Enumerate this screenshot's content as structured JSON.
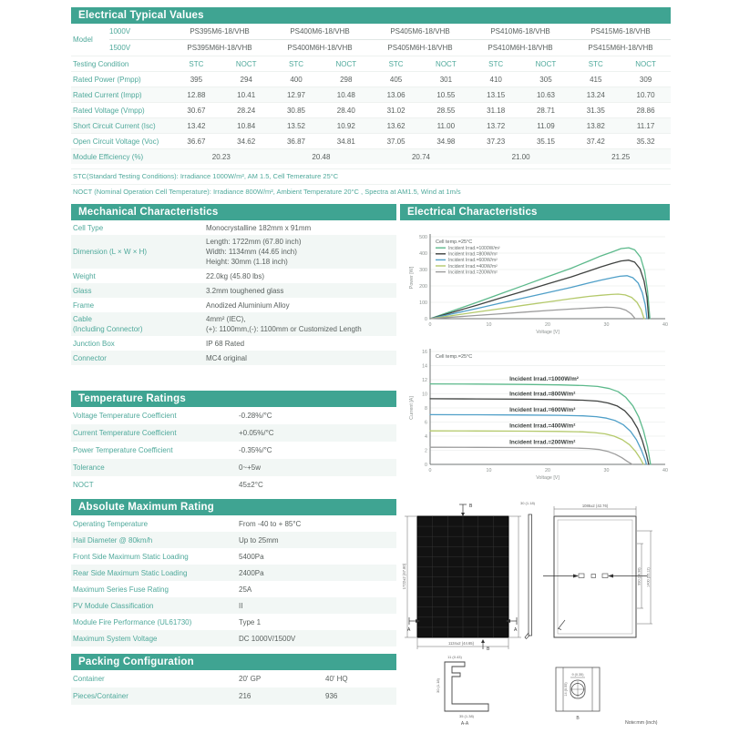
{
  "theme": {
    "accent": "#3fa492",
    "label_color": "#4fa99b",
    "value_color": "#5a615f",
    "stripe": "#f2f7f5"
  },
  "electrical_typical": {
    "title": "Electrical Typical Values",
    "model_label": "Model",
    "voltages": [
      "1000V",
      "1500V"
    ],
    "models_1000": [
      "PS395M6-18/VHB",
      "PS400M6-18/VHB",
      "PS405M6-18/VHB",
      "PS410M6-18/VHB",
      "PS415M6-18/VHB"
    ],
    "models_1500": [
      "PS395M6H-18/VHB",
      "PS400M6H-18/VHB",
      "PS405M6H-18/VHB",
      "PS410M6H-18/VHB",
      "PS415M6H-18/VHB"
    ],
    "testing_condition_label": "Testing Condition",
    "condition_headers": [
      "STC",
      "NOCT"
    ],
    "rows": [
      {
        "label": "Rated Power (Pmpp)",
        "values": [
          "395",
          "294",
          "400",
          "298",
          "405",
          "301",
          "410",
          "305",
          "415",
          "309"
        ]
      },
      {
        "label": "Rated Current (Impp)",
        "values": [
          "12.88",
          "10.41",
          "12.97",
          "10.48",
          "13.06",
          "10.55",
          "13.15",
          "10.63",
          "13.24",
          "10.70"
        ]
      },
      {
        "label": "Rated Voltage (Vmpp)",
        "values": [
          "30.67",
          "28.24",
          "30.85",
          "28.40",
          "31.02",
          "28.55",
          "31.18",
          "28.71",
          "31.35",
          "28.86"
        ]
      },
      {
        "label": "Short Circuit Current (Isc)",
        "values": [
          "13.42",
          "10.84",
          "13.52",
          "10.92",
          "13.62",
          "11.00",
          "13.72",
          "11.09",
          "13.82",
          "11.17"
        ]
      },
      {
        "label": "Open Circuit Voltage (Voc)",
        "values": [
          "36.67",
          "34.62",
          "36.87",
          "34.81",
          "37.05",
          "34.98",
          "37.23",
          "35.15",
          "37.42",
          "35.32"
        ]
      }
    ],
    "efficiency_row": {
      "label": "Module Efficiency (%)",
      "values": [
        "20.23",
        "20.48",
        "20.74",
        "21.00",
        "21.25"
      ]
    },
    "notes": [
      "STC(Standard Testing Conditions): Irradiance 1000W/m², AM 1.5, Cell Temerature 25°C",
      "NOCT (Nominal Operation Cell Temperature): Irradiance 800W/m², Ambient Temperature 20°C , Spectra at AM1.5, Wind at 1m/s"
    ]
  },
  "mechanical": {
    "title": "Mechanical Characteristics",
    "rows": [
      {
        "label": [
          "Cell Type"
        ],
        "value": [
          "Monocrystalline 182mm x 91mm"
        ]
      },
      {
        "label": [
          "Dimension (L × W × H)"
        ],
        "value": [
          "Length: 1722mm (67.80 inch)",
          "Width: 1134mm (44.65 inch)",
          "Height: 30mm (1.18 inch)"
        ]
      },
      {
        "label": [
          "Weight"
        ],
        "value": [
          "22.0kg (45.80 lbs)"
        ]
      },
      {
        "label": [
          "Glass"
        ],
        "value": [
          "3.2mm toughened glass"
        ]
      },
      {
        "label": [
          "Frame"
        ],
        "value": [
          "Anodized Aluminium Alloy"
        ]
      },
      {
        "label": [
          "Cable",
          "(Including Connector)"
        ],
        "value": [
          "4mm² (IEC),",
          "(+): 1100mm,(-): 1100mm or Customized Length"
        ]
      },
      {
        "label": [
          "Junction Box"
        ],
        "value": [
          "IP 68 Rated"
        ]
      },
      {
        "label": [
          "Connector"
        ],
        "value": [
          "MC4 original"
        ]
      }
    ]
  },
  "temperature": {
    "title": "Temperature Ratings",
    "rows": [
      {
        "label": [
          "Voltage Temperature Coefficient"
        ],
        "value": [
          "-0.28%/°C"
        ]
      },
      {
        "label": [
          "Current Temperature Coefficient"
        ],
        "value": [
          "+0.05%/°C"
        ]
      },
      {
        "label": [
          "Power Temperature Coefficient"
        ],
        "value": [
          "-0.35%/°C"
        ]
      },
      {
        "label": [
          "Tolerance"
        ],
        "value": [
          "0~+5w"
        ]
      },
      {
        "label": [
          "NOCT"
        ],
        "value": [
          "45±2°C"
        ]
      }
    ]
  },
  "absolute": {
    "title": "Absolute Maximum Rating",
    "rows": [
      {
        "label": [
          "Operating Temperature"
        ],
        "value": [
          "From -40 to + 85°C"
        ]
      },
      {
        "label": [
          "Hail Diameter @ 80km/h"
        ],
        "value": [
          "Up to 25mm"
        ]
      },
      {
        "label": [
          "Front Side Maximum Static Loading"
        ],
        "value": [
          "5400Pa"
        ]
      },
      {
        "label": [
          "Rear Side Maximum Static Loading"
        ],
        "value": [
          "2400Pa"
        ]
      },
      {
        "label": [
          "Maximum Series Fuse Rating"
        ],
        "value": [
          "25A"
        ]
      },
      {
        "label": [
          "PV Module Classification"
        ],
        "value": [
          "II"
        ]
      },
      {
        "label": [
          "Module Fire Performance (UL61730)"
        ],
        "value": [
          "Type 1"
        ]
      },
      {
        "label": [
          "Maximum System Voltage"
        ],
        "value": [
          "DC 1000V/1500V"
        ]
      }
    ]
  },
  "packing": {
    "title": "Packing Configuration",
    "rows": [
      {
        "label": "Container",
        "values": [
          "20' GP",
          "40' HQ"
        ]
      },
      {
        "label": "Pieces/Container",
        "values": [
          "216",
          "936"
        ]
      }
    ]
  },
  "electrical_characteristics": {
    "title": "Electrical Characteristics"
  },
  "chart_data": [
    {
      "type": "line",
      "title": "",
      "note": "Cell temp.=25°C",
      "xlabel": "Voltage [V]",
      "ylabel": "Power [W]",
      "xlim": [
        0,
        40
      ],
      "ylim": [
        0,
        500
      ],
      "xticks": [
        0,
        10,
        20,
        30,
        40
      ],
      "yticks": [
        0,
        100,
        200,
        300,
        400,
        500
      ],
      "legend": true,
      "inline_labels": false,
      "grid": "horizontal",
      "series": [
        {
          "name": "Incident Irrad.=1000W/m²",
          "color": "#5cb98b",
          "points": [
            [
              0,
              0
            ],
            [
              4,
              50
            ],
            [
              8,
              100
            ],
            [
              12,
              152
            ],
            [
              16,
              204
            ],
            [
              20,
              256
            ],
            [
              24,
              308
            ],
            [
              27,
              352
            ],
            [
              29,
              382
            ],
            [
              31,
              408
            ],
            [
              32.5,
              428
            ],
            [
              33.8,
              433
            ],
            [
              34.8,
              420
            ],
            [
              35.8,
              375
            ],
            [
              36.5,
              290
            ],
            [
              37,
              170
            ],
            [
              37.4,
              0
            ]
          ]
        },
        {
          "name": "Incident Irrad.=800W/m²",
          "color": "#3f4240",
          "points": [
            [
              0,
              0
            ],
            [
              4,
              41
            ],
            [
              8,
              83
            ],
            [
              12,
              126
            ],
            [
              16,
              169
            ],
            [
              20,
              212
            ],
            [
              24,
              255
            ],
            [
              27,
              291
            ],
            [
              29,
              315
            ],
            [
              31,
              337
            ],
            [
              32.5,
              352
            ],
            [
              33.8,
              357
            ],
            [
              34.8,
              345
            ],
            [
              35.7,
              305
            ],
            [
              36.4,
              230
            ],
            [
              36.9,
              130
            ],
            [
              37.2,
              0
            ]
          ]
        },
        {
          "name": "Incident Irrad.=600W/m²",
          "color": "#4f9fc8",
          "points": [
            [
              0,
              0
            ],
            [
              4,
              31
            ],
            [
              8,
              63
            ],
            [
              12,
              95
            ],
            [
              16,
              127
            ],
            [
              20,
              159
            ],
            [
              24,
              191
            ],
            [
              27,
              218
            ],
            [
              29,
              235
            ],
            [
              31,
              250
            ],
            [
              32.3,
              259
            ],
            [
              33.5,
              262
            ],
            [
              34.5,
              250
            ],
            [
              35.4,
              218
            ],
            [
              36.1,
              160
            ],
            [
              36.6,
              85
            ],
            [
              36.9,
              0
            ]
          ]
        },
        {
          "name": "Incident Irrad.=400W/m²",
          "color": "#b4c96b",
          "points": [
            [
              0,
              0
            ],
            [
              4,
              20
            ],
            [
              8,
              41
            ],
            [
              12,
              61
            ],
            [
              16,
              82
            ],
            [
              20,
              102
            ],
            [
              24,
              122
            ],
            [
              27,
              136
            ],
            [
              29,
              143
            ],
            [
              30.8,
              148
            ],
            [
              32,
              150
            ],
            [
              33.2,
              145
            ],
            [
              34.3,
              130
            ],
            [
              35.2,
              100
            ],
            [
              35.9,
              55
            ],
            [
              36.4,
              0
            ]
          ]
        },
        {
          "name": "Incident Irrad.=200W/m²",
          "color": "#9c9c9c",
          "points": [
            [
              0,
              0
            ],
            [
              4,
              10
            ],
            [
              8,
              20
            ],
            [
              12,
              30
            ],
            [
              16,
              40
            ],
            [
              20,
              50
            ],
            [
              24,
              59
            ],
            [
              26.5,
              64
            ],
            [
              28.5,
              68
            ],
            [
              30,
              70
            ],
            [
              31.2,
              69
            ],
            [
              32.3,
              64
            ],
            [
              33.3,
              52
            ],
            [
              34.2,
              30
            ],
            [
              34.9,
              0
            ]
          ]
        }
      ]
    },
    {
      "type": "line",
      "title": "",
      "note": "Cell temp.=25°C",
      "xlabel": "Voltage [V]",
      "ylabel": "Current [A]",
      "xlim": [
        0,
        40
      ],
      "ylim": [
        0,
        16
      ],
      "xticks": [
        0,
        10,
        20,
        30,
        40
      ],
      "yticks": [
        0,
        2,
        4,
        6,
        8,
        10,
        12,
        14,
        16
      ],
      "legend": false,
      "inline_labels": true,
      "grid": "horizontal",
      "series": [
        {
          "name": "Incident Irrad.=1000W/m²",
          "color": "#5cb98b",
          "points": [
            [
              0,
              11.4
            ],
            [
              8,
              11.38
            ],
            [
              16,
              11.33
            ],
            [
              22,
              11.27
            ],
            [
              26,
              11.18
            ],
            [
              28.5,
              11.05
            ],
            [
              30.5,
              10.75
            ],
            [
              32,
              10.3
            ],
            [
              33.3,
              9.5
            ],
            [
              34.5,
              8.3
            ],
            [
              35.5,
              6.7
            ],
            [
              36.3,
              4.8
            ],
            [
              37,
              2.5
            ],
            [
              37.5,
              0
            ]
          ]
        },
        {
          "name": "Incident Irrad.=800W/m²",
          "color": "#3f4240",
          "points": [
            [
              0,
              9.3
            ],
            [
              8,
              9.28
            ],
            [
              16,
              9.24
            ],
            [
              22,
              9.18
            ],
            [
              26,
              9.1
            ],
            [
              28.5,
              8.97
            ],
            [
              30.3,
              8.7
            ],
            [
              31.8,
              8.3
            ],
            [
              33.1,
              7.6
            ],
            [
              34.3,
              6.5
            ],
            [
              35.3,
              5.1
            ],
            [
              36.1,
              3.4
            ],
            [
              36.8,
              1.4
            ],
            [
              37.2,
              0
            ]
          ]
        },
        {
          "name": "Incident Irrad.=600W/m²",
          "color": "#4f9fc8",
          "points": [
            [
              0,
              7.05
            ],
            [
              8,
              7.03
            ],
            [
              16,
              7.0
            ],
            [
              22,
              6.95
            ],
            [
              26,
              6.88
            ],
            [
              28.3,
              6.76
            ],
            [
              30,
              6.55
            ],
            [
              31.5,
              6.2
            ],
            [
              32.9,
              5.6
            ],
            [
              34.1,
              4.7
            ],
            [
              35.1,
              3.5
            ],
            [
              35.9,
              2.1
            ],
            [
              36.6,
              0.6
            ],
            [
              36.8,
              0
            ]
          ]
        },
        {
          "name": "Incident Irrad.=400W/m²",
          "color": "#b4c96b",
          "points": [
            [
              0,
              4.75
            ],
            [
              8,
              4.74
            ],
            [
              16,
              4.71
            ],
            [
              22,
              4.67
            ],
            [
              26,
              4.6
            ],
            [
              28,
              4.5
            ],
            [
              29.8,
              4.32
            ],
            [
              31.3,
              4.0
            ],
            [
              32.7,
              3.5
            ],
            [
              33.9,
              2.8
            ],
            [
              34.9,
              1.9
            ],
            [
              35.7,
              0.9
            ],
            [
              36.3,
              0
            ]
          ]
        },
        {
          "name": "Incident Irrad.=200W/m²",
          "color": "#9c9c9c",
          "points": [
            [
              0,
              2.42
            ],
            [
              8,
              2.41
            ],
            [
              16,
              2.39
            ],
            [
              22,
              2.36
            ],
            [
              25,
              2.31
            ],
            [
              27,
              2.24
            ],
            [
              28.8,
              2.1
            ],
            [
              30.2,
              1.85
            ],
            [
              31.5,
              1.45
            ],
            [
              32.6,
              0.95
            ],
            [
              33.6,
              0.4
            ],
            [
              34.4,
              0
            ]
          ]
        }
      ]
    }
  ],
  "drawings": {
    "front_height": "1722±2 (67.80)",
    "front_width": "1134±2 (44.65)",
    "thickness": "30 (1.18)",
    "rear_width": "1086±2 (42.76)",
    "hole_spacing_inner": "990 (38.98)",
    "hole_spacing_outer": "1400 (55.12)",
    "section_a_top": "11 (0.43)",
    "section_a_left": "30 (1.18)",
    "section_a_bottom": "35 (1.38)",
    "section_a_label": "A-A",
    "hole_width": "9 (0.35)",
    "hole_height": "14 (0.55)",
    "hole_label": "B",
    "marker_a": "A",
    "marker_b": "B",
    "note": "Note:mm (inch)"
  }
}
